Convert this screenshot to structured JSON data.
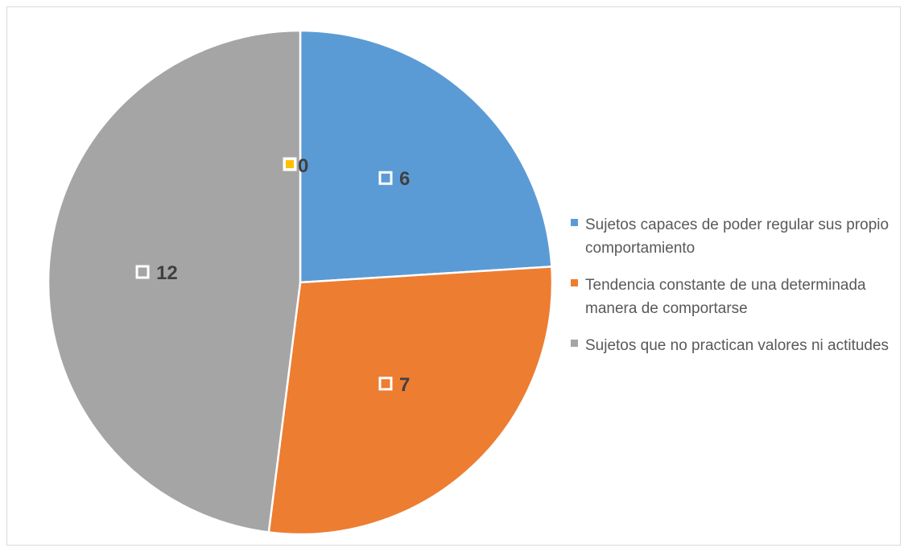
{
  "chart_data": {
    "type": "pie",
    "title": "",
    "start_angle_deg": 0,
    "direction": "clockwise",
    "slices": [
      {
        "label": "",
        "value": 6,
        "color": "#5B9BD5",
        "data_label": "6"
      },
      {
        "label": "",
        "value": 7,
        "color": "#ED7D31",
        "data_label": "7"
      },
      {
        "label": "",
        "value": 12,
        "color": "#A5A5A5",
        "data_label": "12"
      },
      {
        "label": "",
        "value": 0,
        "color": "#FFC000",
        "data_label": "0"
      }
    ],
    "legend": {
      "position": "right",
      "entries": [
        {
          "label": "Sujetos capaces de poder regular sus propio comportamiento",
          "color": "#5B9BD5"
        },
        {
          "label": "Tendencia constante de una determinada manera de comportarse",
          "color": "#ED7D31"
        },
        {
          "label": "Sujetos que no practican valores ni actitudes",
          "color": "#A5A5A5"
        }
      ]
    }
  }
}
